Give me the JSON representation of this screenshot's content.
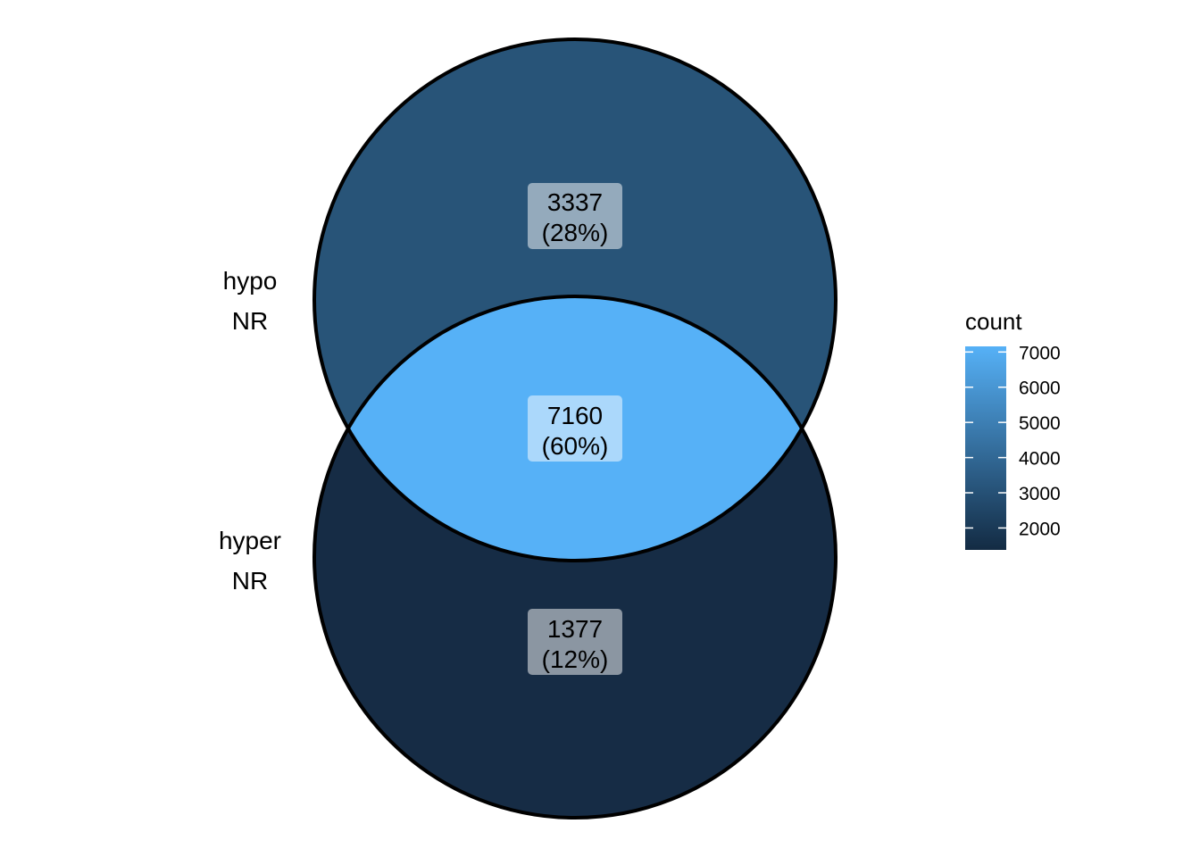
{
  "venn": {
    "sets": [
      {
        "line1": "hypo",
        "line2": "NR"
      },
      {
        "line1": "hyper",
        "line2": "NR"
      }
    ],
    "regions": [
      {
        "id": "hypo-only",
        "count": 3337,
        "count_text": "3337",
        "percent_text": "(28%)",
        "fill": "#285478"
      },
      {
        "id": "both",
        "count": 7160,
        "count_text": "7160",
        "percent_text": "(60%)",
        "fill": "#56b1f7"
      },
      {
        "id": "hyper-only",
        "count": 1377,
        "count_text": "1377",
        "percent_text": "(12%)",
        "fill": "#162c45"
      }
    ]
  },
  "legend": {
    "title": "count",
    "ticks": [
      "7000",
      "6000",
      "5000",
      "4000",
      "3000",
      "2000"
    ],
    "tick_values": [
      7000,
      6000,
      5000,
      4000,
      3000,
      2000
    ],
    "range": [
      1377,
      7160
    ],
    "low_color": "#132b43",
    "high_color": "#56b1f7"
  }
}
